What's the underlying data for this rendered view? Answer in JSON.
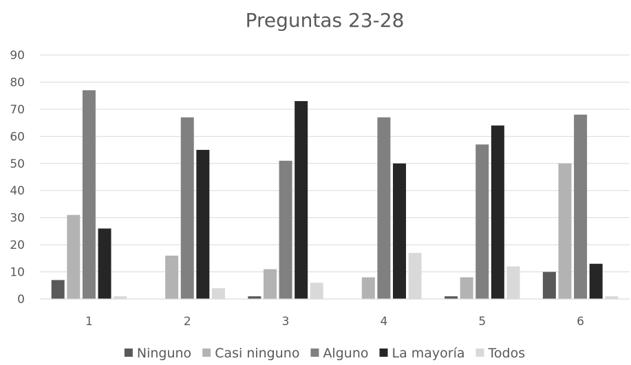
{
  "chart_data": {
    "type": "bar",
    "title": "Preguntas 23-28",
    "xlabel": "",
    "ylabel": "",
    "categories": [
      "1",
      "2",
      "3",
      "4",
      "5",
      "6"
    ],
    "ylim": [
      0,
      90
    ],
    "yticks": [
      0,
      10,
      20,
      30,
      40,
      50,
      60,
      70,
      80,
      90
    ],
    "grid": true,
    "legend_position": "bottom",
    "series": [
      {
        "name": "Ninguno",
        "color": "#595959",
        "values": [
          7,
          0,
          1,
          0,
          1,
          10
        ]
      },
      {
        "name": "Casi ninguno",
        "color": "#b3b3b3",
        "values": [
          31,
          16,
          11,
          8,
          8,
          50
        ]
      },
      {
        "name": "Alguno",
        "color": "#808080",
        "values": [
          77,
          67,
          51,
          67,
          57,
          68
        ]
      },
      {
        "name": "La mayoría",
        "color": "#262626",
        "values": [
          26,
          55,
          73,
          50,
          64,
          13
        ]
      },
      {
        "name": "Todos",
        "color": "#d9d9d9",
        "values": [
          1,
          4,
          6,
          17,
          12,
          1
        ]
      }
    ]
  }
}
